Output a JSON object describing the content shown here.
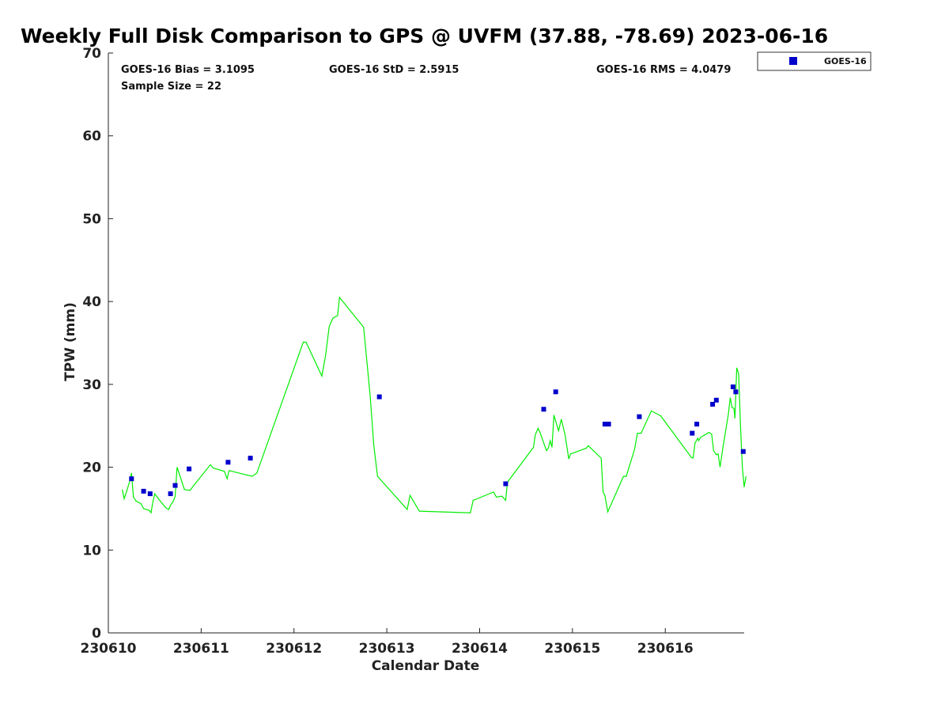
{
  "chart_data": {
    "type": "scatter",
    "title": "Weekly Full Disk Comparison to GPS @ UVFM (37.88, -78.69) 2023-06-16",
    "xlabel": "Calendar Date",
    "ylabel": "TPW (mm)",
    "xlim": [
      230610.0,
      230616.85
    ],
    "ylim": [
      0,
      70
    ],
    "x_ticks": [
      230610,
      230611,
      230612,
      230613,
      230614,
      230615,
      230616
    ],
    "x_tick_labels": [
      "230610",
      "230611",
      "230612",
      "230613",
      "230614",
      "230615",
      "230616"
    ],
    "y_ticks": [
      0,
      10,
      20,
      30,
      40,
      50,
      60,
      70
    ],
    "y_tick_labels": [
      "0",
      "10",
      "20",
      "30",
      "40",
      "50",
      "60",
      "70"
    ],
    "grid": false,
    "legend_position": "top-right",
    "stats": {
      "bias": "GOES-16 Bias = 3.1095",
      "std": "GOES-16 StD = 2.5915",
      "rms": "GOES-16 RMS = 4.0479",
      "sample_size": "Sample Size = 22"
    },
    "series": [
      {
        "name": "GOES-16",
        "kind": "scatter",
        "color": "#0000cc",
        "points": [
          [
            230610.25,
            18.6
          ],
          [
            230610.38,
            17.1
          ],
          [
            230610.45,
            16.8
          ],
          [
            230610.67,
            16.8
          ],
          [
            230610.72,
            17.8
          ],
          [
            230610.87,
            19.8
          ],
          [
            230611.29,
            20.6
          ],
          [
            230611.53,
            21.1
          ],
          [
            230612.92,
            28.5
          ],
          [
            230614.28,
            18.0
          ],
          [
            230614.69,
            27.0
          ],
          [
            230614.82,
            29.1
          ],
          [
            230615.35,
            25.2
          ],
          [
            230615.39,
            25.2
          ],
          [
            230615.72,
            26.1
          ],
          [
            230616.29,
            24.1
          ],
          [
            230616.34,
            25.2
          ],
          [
            230616.51,
            27.6
          ],
          [
            230616.55,
            28.1
          ],
          [
            230616.73,
            29.7
          ],
          [
            230616.76,
            29.1
          ],
          [
            230616.84,
            21.9
          ]
        ]
      },
      {
        "kind": "line",
        "color": "#00ee00",
        "points": [
          [
            230610.15,
            17.3
          ],
          [
            230610.17,
            16.2
          ],
          [
            230610.2,
            17.2
          ],
          [
            230610.23,
            18.3
          ],
          [
            230610.25,
            19.3
          ],
          [
            230610.27,
            16.4
          ],
          [
            230610.3,
            15.9
          ],
          [
            230610.35,
            15.6
          ],
          [
            230610.38,
            15.0
          ],
          [
            230610.44,
            14.8
          ],
          [
            230610.46,
            14.5
          ],
          [
            230610.48,
            15.8
          ],
          [
            230610.5,
            16.8
          ],
          [
            230610.56,
            15.9
          ],
          [
            230610.62,
            15.1
          ],
          [
            230610.65,
            14.9
          ],
          [
            230610.67,
            15.4
          ],
          [
            230610.7,
            15.9
          ],
          [
            230610.72,
            16.5
          ],
          [
            230610.74,
            20.0
          ],
          [
            230610.77,
            19.0
          ],
          [
            230610.82,
            17.3
          ],
          [
            230610.88,
            17.2
          ],
          [
            230610.92,
            17.8
          ],
          [
            230611.1,
            20.3
          ],
          [
            230611.13,
            19.9
          ],
          [
            230611.25,
            19.5
          ],
          [
            230611.28,
            18.6
          ],
          [
            230611.3,
            19.6
          ],
          [
            230611.55,
            18.9
          ],
          [
            230611.6,
            19.3
          ],
          [
            230612.1,
            35.1
          ],
          [
            230612.13,
            35.1
          ],
          [
            230612.3,
            31.0
          ],
          [
            230612.34,
            33.5
          ],
          [
            230612.38,
            37.0
          ],
          [
            230612.42,
            38.0
          ],
          [
            230612.47,
            38.3
          ],
          [
            230612.49,
            40.5
          ],
          [
            230612.75,
            36.9
          ],
          [
            230612.82,
            28.7
          ],
          [
            230612.86,
            22.6
          ],
          [
            230612.9,
            18.9
          ],
          [
            230613.22,
            14.9
          ],
          [
            230613.25,
            16.6
          ],
          [
            230613.35,
            14.7
          ],
          [
            230613.9,
            14.5
          ],
          [
            230613.93,
            16.0
          ],
          [
            230614.15,
            17.0
          ],
          [
            230614.18,
            16.4
          ],
          [
            230614.24,
            16.5
          ],
          [
            230614.28,
            16.0
          ],
          [
            230614.3,
            18.2
          ],
          [
            230614.58,
            22.4
          ],
          [
            230614.6,
            23.9
          ],
          [
            230614.63,
            24.7
          ],
          [
            230614.65,
            24.2
          ],
          [
            230614.72,
            22.0
          ],
          [
            230614.74,
            22.3
          ],
          [
            230614.76,
            23.2
          ],
          [
            230614.78,
            22.4
          ],
          [
            230614.8,
            26.3
          ],
          [
            230614.85,
            24.4
          ],
          [
            230614.88,
            25.8
          ],
          [
            230614.92,
            23.9
          ],
          [
            230614.96,
            21.0
          ],
          [
            230614.98,
            21.6
          ],
          [
            230615.15,
            22.3
          ],
          [
            230615.17,
            22.6
          ],
          [
            230615.31,
            21.1
          ],
          [
            230615.33,
            17.0
          ],
          [
            230615.35,
            16.6
          ],
          [
            230615.38,
            14.6
          ],
          [
            230615.55,
            18.9
          ],
          [
            230615.58,
            18.9
          ],
          [
            230615.67,
            22.2
          ],
          [
            230615.7,
            24.1
          ],
          [
            230615.74,
            24.1
          ],
          [
            230615.85,
            26.8
          ],
          [
            230615.95,
            26.2
          ],
          [
            230616.28,
            21.2
          ],
          [
            230616.3,
            21.1
          ],
          [
            230616.32,
            22.9
          ],
          [
            230616.35,
            23.5
          ],
          [
            230616.36,
            23.2
          ],
          [
            230616.38,
            23.6
          ],
          [
            230616.47,
            24.2
          ],
          [
            230616.5,
            24.0
          ],
          [
            230616.52,
            22.0
          ],
          [
            230616.55,
            21.5
          ],
          [
            230616.57,
            21.6
          ],
          [
            230616.59,
            20.0
          ],
          [
            230616.62,
            22.3
          ],
          [
            230616.68,
            26.4
          ],
          [
            230616.7,
            28.4
          ],
          [
            230616.72,
            27.2
          ],
          [
            230616.74,
            27.1
          ],
          [
            230616.75,
            25.9
          ],
          [
            230616.77,
            32.0
          ],
          [
            230616.79,
            31.3
          ],
          [
            230616.81,
            25.1
          ],
          [
            230616.83,
            20.0
          ],
          [
            230616.85,
            17.6
          ],
          [
            230616.87,
            18.9
          ]
        ]
      }
    ]
  }
}
